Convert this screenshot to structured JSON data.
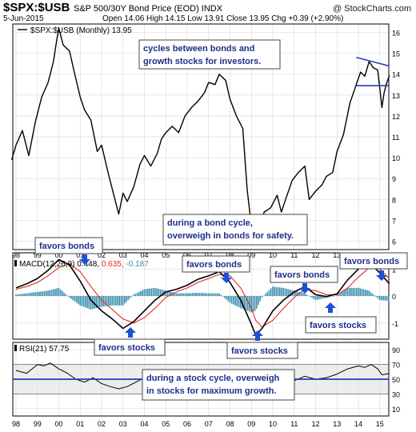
{
  "header": {
    "symbol": "$SPX:$USB",
    "description": "S&P 500/30Y Bond Price (EOD)  INDX",
    "watermark": "@ StockCharts.com",
    "date": "5-Jun-2015",
    "ohlc": "Open 14.06  High 14.15  Low 13.91  Close 13.95  Chg +0.39 (+2.90%)"
  },
  "colors": {
    "price": "#000000",
    "macd": "#000000",
    "signal": "#e03020",
    "histogram": "#3c8fb0",
    "annotation_text": "#1d2f8a",
    "arrow": "#1f4fd8",
    "trendline": "#1f3fbf",
    "rsi_band": "#cccccc"
  },
  "x_axis": {
    "ticks": [
      "98",
      "99",
      "00",
      "01",
      "02",
      "03",
      "04",
      "05",
      "06",
      "07",
      "08",
      "09",
      "10",
      "11",
      "12",
      "13",
      "14",
      "15"
    ]
  },
  "chart_data": [
    {
      "type": "line",
      "title": "$SPX:$USB (Monthly) 13.95",
      "x_unit": "year (fractional)",
      "yticks": [
        6,
        7,
        8,
        9,
        10,
        11,
        12,
        13,
        14,
        15,
        16
      ],
      "ylim": [
        5.6,
        16.4
      ],
      "series": [
        {
          "name": "$SPX:$USB (Monthly)",
          "x": [
            1997.8,
            1998.0,
            1998.3,
            1998.6,
            1998.9,
            1999.2,
            1999.5,
            1999.75,
            1999.9,
            2000.0,
            2000.2,
            2000.5,
            2000.7,
            2001.0,
            2001.2,
            2001.5,
            2001.8,
            2002.0,
            2002.3,
            2002.6,
            2002.8,
            2003.0,
            2003.2,
            2003.5,
            2003.8,
            2004.0,
            2004.3,
            2004.6,
            2004.8,
            2005.0,
            2005.3,
            2005.6,
            2005.9,
            2006.2,
            2006.5,
            2006.8,
            2007.0,
            2007.3,
            2007.5,
            2007.8,
            2008.0,
            2008.3,
            2008.6,
            2008.8,
            2009.0,
            2009.17,
            2009.4,
            2009.6,
            2009.9,
            2010.2,
            2010.4,
            2010.6,
            2010.9,
            2011.2,
            2011.5,
            2011.7,
            2012.0,
            2012.3,
            2012.5,
            2012.8,
            2013.0,
            2013.3,
            2013.6,
            2013.9,
            2014.1,
            2014.3,
            2014.5,
            2014.7,
            2014.9,
            2015.0,
            2015.1,
            2015.2,
            2015.3,
            2015.45
          ],
          "y": [
            9.9,
            10.6,
            11.3,
            10.1,
            11.7,
            12.9,
            13.6,
            14.6,
            15.6,
            16.2,
            15.4,
            15.1,
            14.2,
            12.9,
            12.3,
            11.8,
            10.3,
            10.6,
            9.3,
            8.1,
            7.3,
            8.3,
            7.9,
            8.6,
            9.7,
            10.1,
            9.6,
            10.2,
            10.9,
            11.2,
            11.5,
            11.2,
            12.0,
            12.4,
            12.7,
            13.1,
            13.6,
            13.5,
            14.0,
            13.7,
            12.8,
            12.0,
            11.4,
            8.5,
            6.7,
            6.2,
            6.8,
            7.4,
            7.6,
            8.2,
            7.4,
            8.0,
            8.9,
            9.3,
            9.6,
            8.0,
            8.4,
            8.7,
            9.1,
            9.3,
            10.3,
            11.1,
            12.6,
            13.5,
            14.1,
            13.9,
            14.6,
            14.3,
            14.2,
            13.3,
            12.4,
            13.1,
            13.5,
            13.95
          ]
        }
      ],
      "trendlines": [
        {
          "x": [
            2013.9,
            2015.4
          ],
          "y": [
            14.8,
            14.4
          ]
        },
        {
          "x": [
            2013.9,
            2015.4
          ],
          "y": [
            13.45,
            13.45
          ]
        }
      ]
    },
    {
      "type": "line",
      "title": "MACD(12,26,9)",
      "values_label": [
        "0.448",
        "0.635",
        "-0.187"
      ],
      "yticks": [
        1,
        0,
        -1
      ],
      "ylim": [
        -1.6,
        1.6
      ],
      "series": [
        {
          "name": "MACD",
          "x": [
            1998.0,
            1998.5,
            1999.0,
            1999.5,
            2000.0,
            2000.5,
            2001.0,
            2001.5,
            2002.0,
            2002.5,
            2003.0,
            2003.5,
            2004.0,
            2004.5,
            2005.0,
            2005.5,
            2006.0,
            2006.5,
            2007.0,
            2007.5,
            2008.0,
            2008.5,
            2009.0,
            2009.2,
            2009.5,
            2010.0,
            2010.5,
            2011.0,
            2011.5,
            2012.0,
            2012.5,
            2013.0,
            2013.5,
            2014.0,
            2014.5,
            2015.0,
            2015.45
          ],
          "y": [
            0.3,
            0.45,
            0.65,
            0.95,
            1.35,
            1.15,
            0.55,
            -0.15,
            -0.55,
            -0.85,
            -1.2,
            -0.95,
            -0.55,
            -0.15,
            0.15,
            0.25,
            0.4,
            0.62,
            0.75,
            0.9,
            0.5,
            -0.15,
            -1.05,
            -1.45,
            -1.2,
            -0.55,
            -0.15,
            0.15,
            0.35,
            0.05,
            -0.02,
            0.08,
            0.6,
            1.0,
            1.25,
            0.85,
            0.45
          ]
        },
        {
          "name": "Signal",
          "x": [
            1998.0,
            1998.5,
            1999.0,
            1999.5,
            2000.0,
            2000.5,
            2001.0,
            2001.5,
            2002.0,
            2002.5,
            2003.0,
            2003.5,
            2004.0,
            2004.5,
            2005.0,
            2005.5,
            2006.0,
            2006.5,
            2007.0,
            2007.5,
            2008.0,
            2008.5,
            2009.0,
            2009.2,
            2009.5,
            2010.0,
            2010.5,
            2011.0,
            2011.5,
            2012.0,
            2012.5,
            2013.0,
            2013.5,
            2014.0,
            2014.5,
            2015.0,
            2015.45
          ],
          "y": [
            0.25,
            0.35,
            0.5,
            0.75,
            1.05,
            1.2,
            0.9,
            0.35,
            -0.15,
            -0.5,
            -0.85,
            -1.0,
            -0.8,
            -0.45,
            -0.05,
            0.15,
            0.3,
            0.5,
            0.65,
            0.8,
            0.75,
            0.3,
            -0.45,
            -0.9,
            -1.15,
            -0.9,
            -0.45,
            -0.05,
            0.25,
            0.2,
            0.05,
            0.05,
            0.3,
            0.7,
            1.05,
            1.0,
            0.635
          ]
        },
        {
          "name": "Histogram",
          "x": [
            1998.0,
            1998.5,
            1999.0,
            1999.5,
            2000.0,
            2000.5,
            2001.0,
            2001.5,
            2002.0,
            2002.5,
            2003.0,
            2003.5,
            2004.0,
            2004.5,
            2005.0,
            2005.5,
            2006.0,
            2006.5,
            2007.0,
            2007.5,
            2008.0,
            2008.5,
            2009.0,
            2009.2,
            2009.5,
            2010.0,
            2010.5,
            2011.0,
            2011.5,
            2012.0,
            2012.5,
            2013.0,
            2013.5,
            2014.0,
            2014.5,
            2015.0,
            2015.45
          ],
          "y": [
            0.05,
            0.1,
            0.15,
            0.2,
            0.3,
            -0.05,
            -0.35,
            -0.5,
            -0.4,
            -0.35,
            -0.35,
            0.05,
            0.25,
            0.3,
            0.2,
            0.1,
            0.1,
            0.12,
            0.1,
            0.1,
            -0.25,
            -0.45,
            -0.6,
            -0.55,
            -0.05,
            0.35,
            0.3,
            0.2,
            0.1,
            -0.15,
            -0.07,
            0.03,
            0.3,
            0.3,
            0.2,
            -0.15,
            -0.187
          ]
        }
      ]
    },
    {
      "type": "line",
      "title": "RSI(21)",
      "value_label": "57.75",
      "yticks": [
        90,
        70,
        50,
        30,
        10
      ],
      "ylim": [
        0,
        100
      ],
      "band": [
        30,
        70
      ],
      "reference_line": 50,
      "series": [
        {
          "name": "RSI(21)",
          "x": [
            1998.0,
            1998.5,
            1999.0,
            1999.3,
            1999.6,
            2000.0,
            2000.4,
            2000.8,
            2001.2,
            2001.6,
            2002.0,
            2002.4,
            2002.8,
            2003.2,
            2003.6,
            2004.0,
            2004.5,
            2005.0,
            2005.5,
            2006.0,
            2006.5,
            2007.0,
            2007.5,
            2008.0,
            2008.4,
            2008.8,
            2009.2,
            2009.6,
            2010.0,
            2010.5,
            2011.0,
            2011.5,
            2012.0,
            2012.5,
            2013.0,
            2013.5,
            2014.0,
            2014.3,
            2014.6,
            2014.9,
            2015.1,
            2015.45
          ],
          "y": [
            62,
            58,
            70,
            68,
            72,
            64,
            58,
            50,
            46,
            52,
            44,
            40,
            37,
            40,
            46,
            52,
            50,
            54,
            55,
            58,
            58,
            61,
            62,
            60,
            52,
            38,
            26,
            42,
            50,
            46,
            48,
            54,
            50,
            52,
            57,
            64,
            68,
            66,
            70,
            64,
            56,
            57.75
          ]
        }
      ]
    }
  ],
  "annotations": {
    "cycles_text_1": "cycles between bonds and",
    "cycles_text_2": "growth stocks for investors.",
    "bond_cycle_1": "during a bond cycle,",
    "bond_cycle_2": "overweigh in bonds for safety.",
    "stock_cycle_1": "during a stock cycle, overweigh",
    "stock_cycle_2": "in stocks for maximum growth.",
    "favors_bonds": "favors bonds",
    "favors_stocks": "favors stocks"
  }
}
